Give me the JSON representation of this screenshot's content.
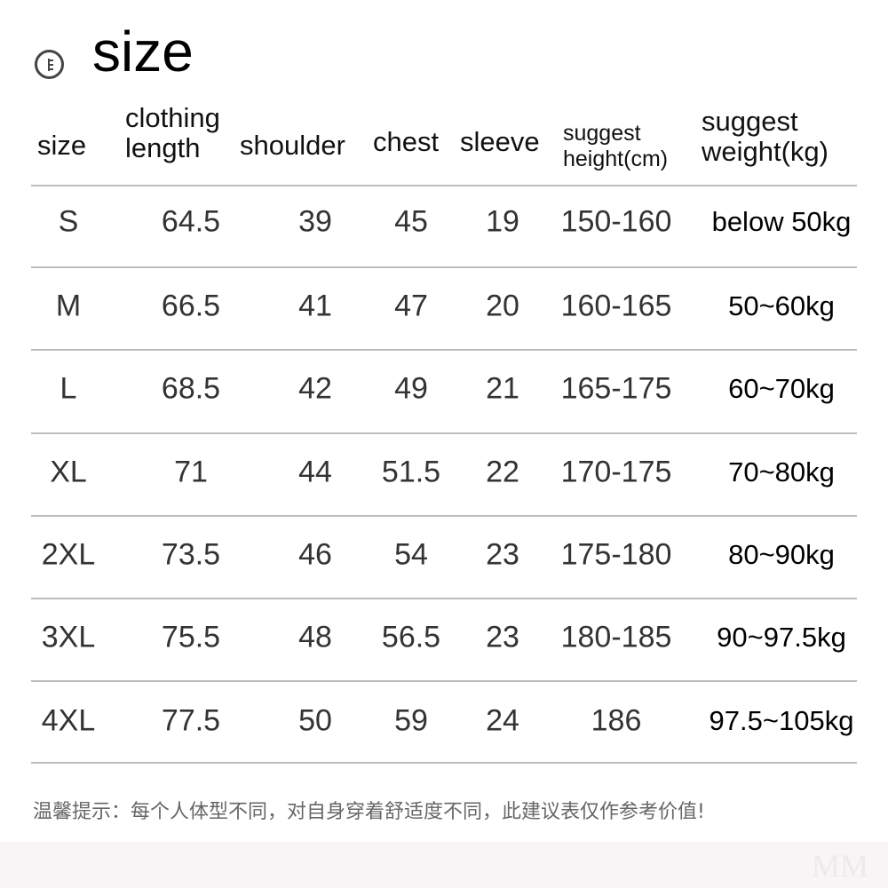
{
  "title": "size",
  "title_icon": "circle-ruler-icon",
  "headers": [
    {
      "lines": [
        "size"
      ]
    },
    {
      "lines": [
        "clothing",
        "length"
      ]
    },
    {
      "lines": [
        "shoulder"
      ]
    },
    {
      "lines": [
        "chest"
      ]
    },
    {
      "lines": [
        "sleeve"
      ]
    },
    {
      "lines": [
        "suggest",
        "height(cm)"
      ]
    },
    {
      "lines": [
        "suggest",
        "weight(kg)"
      ]
    }
  ],
  "rows": [
    [
      "S",
      "64.5",
      "39",
      "45",
      "19",
      "150-160",
      "below 50kg"
    ],
    [
      "M",
      "66.5",
      "41",
      "47",
      "20",
      "160-165",
      "50~60kg"
    ],
    [
      "L",
      "68.5",
      "42",
      "49",
      "21",
      "165-175",
      "60~70kg"
    ],
    [
      "XL",
      "71",
      "44",
      "51.5",
      "22",
      "170-175",
      "70~80kg"
    ],
    [
      "2XL",
      "73.5",
      "46",
      "54",
      "23",
      "175-180",
      "80~90kg"
    ],
    [
      "3XL",
      "75.5",
      "48",
      "56.5",
      "23",
      "180-185",
      "90~97.5kg"
    ],
    [
      "4XL",
      "77.5",
      "50",
      "59",
      "24",
      "186",
      "97.5~105kg"
    ]
  ],
  "note": "温馨提示：每个人体型不同，对自身穿着舒适度不同，此建议表仅作参考价值!",
  "watermark": "MM"
}
